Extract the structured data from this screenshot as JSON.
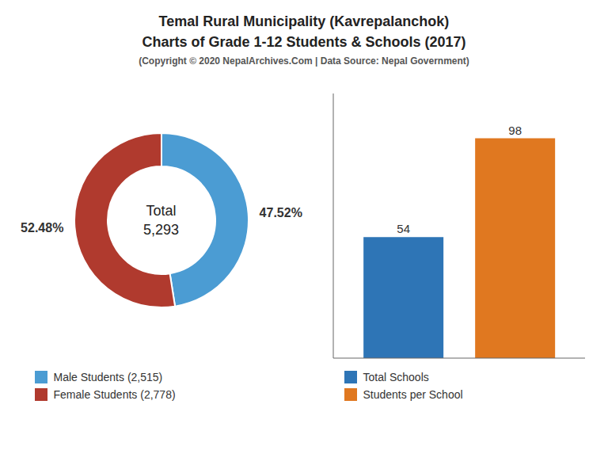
{
  "chart_data": [
    {
      "type": "pie",
      "title": [
        "Temal Rural Municipality (Kavrepalanchok)",
        "Charts of Grade 1-12 Students & Schools (2017)"
      ],
      "subtitle": "(Copyright © 2020 NepalArchives.Com | Data Source: Nepal Government)",
      "categories": [
        "Male Students (2,515)",
        "Female Students (2,778)"
      ],
      "values": [
        47.52,
        52.48
      ],
      "value_labels": [
        "47.52%",
        "52.48%"
      ],
      "colors": [
        "#4b9cd3",
        "#b03a2e"
      ],
      "data_labels": true,
      "annotations": [
        "Total",
        "5,293"
      ],
      "legend": "bottom"
    },
    {
      "type": "bar",
      "categories": [
        null
      ],
      "series": [
        {
          "name": "Total Schools",
          "color": "#2e75b6",
          "values": [
            54
          ]
        },
        {
          "name": "Students per School",
          "color": "#e07820",
          "values": [
            98
          ]
        }
      ],
      "ylim": [
        0,
        118
      ],
      "yticks": [],
      "tick_labels": false,
      "data_labels": true,
      "grid": false,
      "legend": "bottom"
    }
  ]
}
